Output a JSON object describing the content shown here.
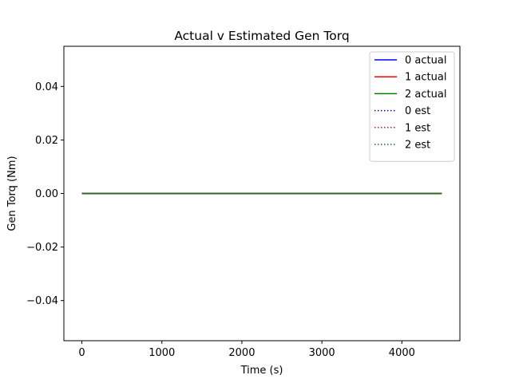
{
  "chart_data": {
    "type": "line",
    "title": "Actual v Estimated Gen Torq",
    "xlabel": "Time (s)",
    "ylabel": "Gen Torq (Nm)",
    "xlim": [
      -225,
      4725
    ],
    "ylim": [
      -0.055,
      0.055
    ],
    "xticks": [
      0,
      1000,
      2000,
      3000,
      4000
    ],
    "xtick_labels": [
      "0",
      "1000",
      "2000",
      "3000",
      "4000"
    ],
    "yticks": [
      -0.04,
      -0.02,
      0.0,
      0.02,
      0.04
    ],
    "ytick_labels": [
      "−0.04",
      "−0.02",
      "0.00",
      "0.02",
      "0.04"
    ],
    "grid": false,
    "legend_position": "upper right",
    "x": [
      0,
      4500
    ],
    "series": [
      {
        "name": "0 actual",
        "values": [
          0,
          0
        ],
        "color": "#0000ff",
        "style": "solid"
      },
      {
        "name": "1 actual",
        "values": [
          0,
          0
        ],
        "color": "#ff0000",
        "style": "solid"
      },
      {
        "name": "2 actual",
        "values": [
          0,
          0
        ],
        "color": "#008000",
        "style": "solid"
      },
      {
        "name": "0 est",
        "values": [
          0,
          0
        ],
        "color": "#0000ff",
        "style": "dotted"
      },
      {
        "name": "1 est",
        "values": [
          0,
          0
        ],
        "color": "#ff0000",
        "style": "dotted"
      },
      {
        "name": "2 est",
        "values": [
          0,
          0
        ],
        "color": "#008000",
        "style": "dotted"
      }
    ]
  }
}
